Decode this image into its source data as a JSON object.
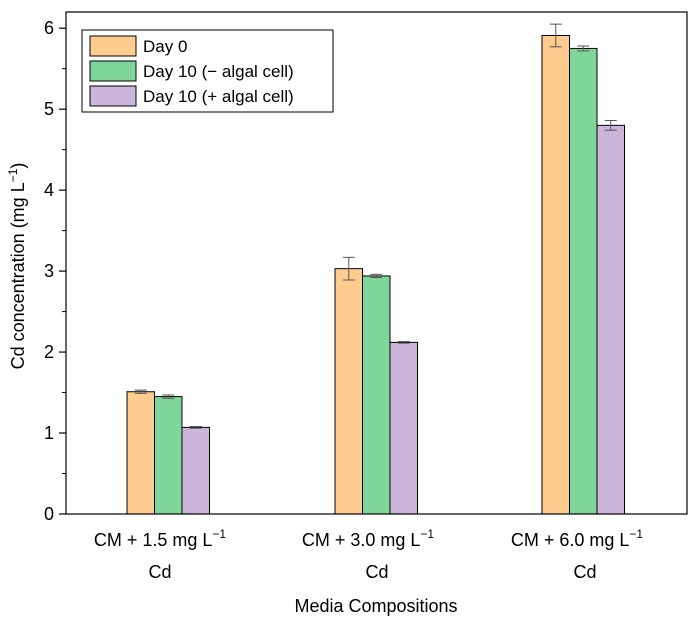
{
  "chart_data": {
    "type": "bar",
    "title": "",
    "xlabel": "Media Compositions",
    "ylabel": "Cd concentration (mg L",
    "ylabel_sup": "−1",
    "ylabel_close": ")",
    "ylim": [
      0,
      6.2
    ],
    "yticks": [
      0,
      1,
      2,
      3,
      4,
      5,
      6
    ],
    "categories": [
      {
        "line1": "CM + 1.5 mg L",
        "sup": "−1",
        "line2": "Cd"
      },
      {
        "line1": "CM + 3.0 mg L",
        "sup": "−1",
        "line2": "Cd"
      },
      {
        "line1": "CM + 6.0 mg L",
        "sup": "−1",
        "line2": "Cd"
      }
    ],
    "series": [
      {
        "name": "Day 0",
        "color": "#FFCC8F",
        "values": [
          1.51,
          3.03,
          5.91
        ],
        "errors": [
          0.02,
          0.14,
          0.14
        ]
      },
      {
        "name": "Day 10 (− algal cell)",
        "color": "#7FD69A",
        "values": [
          1.45,
          2.94,
          5.75
        ],
        "errors": [
          0.02,
          0.02,
          0.03
        ]
      },
      {
        "name": "Day 10 (+ algal cell)",
        "color": "#CCB5DA",
        "values": [
          1.07,
          2.12,
          4.8
        ],
        "errors": [
          0.01,
          0.01,
          0.06
        ]
      }
    ],
    "legend_position": "top-left",
    "grid": false
  }
}
